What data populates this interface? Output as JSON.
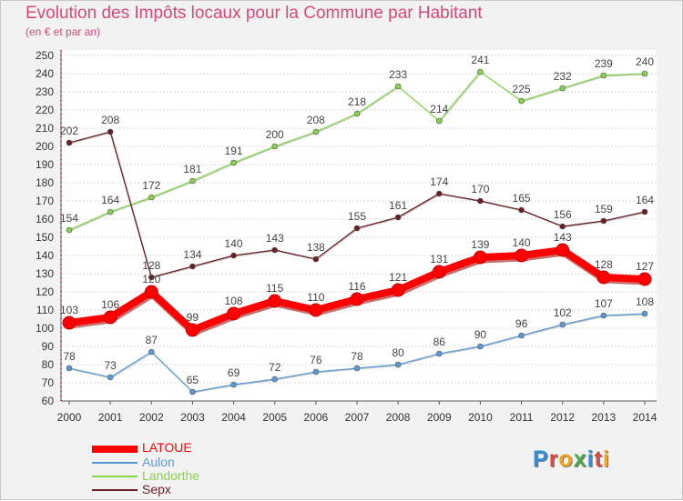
{
  "header": {
    "title": "Evolution des Impôts locaux pour la Commune par Habitant",
    "subtitle": "(en € et par an)"
  },
  "logo": {
    "letters": [
      "P",
      "r",
      "o",
      "x",
      "i",
      "t",
      "i"
    ],
    "colors": [
      "#2e8fd8",
      "#e6453d",
      "#f0a41e",
      "#4aa84a",
      "#2e8fd8",
      "#e6453d",
      "#f0a41e"
    ]
  },
  "chart_data": {
    "type": "line",
    "title": "Evolution des Impôts locaux pour la Commune par Habitant",
    "subtitle": "(en € et par an)",
    "x": [
      "2000",
      "2001",
      "2002",
      "2003",
      "2004",
      "2005",
      "2006",
      "2007",
      "2008",
      "2009",
      "2010",
      "2011",
      "2012",
      "2013",
      "2014"
    ],
    "y_ticks": [
      "60",
      "70",
      "80",
      "90",
      "100",
      "110",
      "120",
      "130",
      "140",
      "150",
      "160",
      "170",
      "180",
      "190",
      "200",
      "210",
      "220",
      "230",
      "240",
      "250"
    ],
    "ylim": [
      60,
      250
    ],
    "grid": "horizontal",
    "legend_position": "bottom-left",
    "series": [
      {
        "name": "LATOUE",
        "color": "#ff0000",
        "values": [
          103,
          106,
          120,
          99,
          108,
          115,
          110,
          116,
          121,
          131,
          139,
          140,
          143,
          128,
          127
        ]
      },
      {
        "name": "Aulon",
        "color": "#5b9bd5",
        "values": [
          78,
          73,
          87,
          65,
          69,
          72,
          76,
          78,
          80,
          86,
          90,
          96,
          102,
          107,
          108
        ]
      },
      {
        "name": "Landorthe",
        "color": "#86d44b",
        "values": [
          154,
          164,
          172,
          181,
          191,
          200,
          208,
          218,
          233,
          214,
          241,
          225,
          232,
          239,
          240
        ]
      },
      {
        "name": "Sepx",
        "color": "#6b1f25",
        "values": [
          202,
          208,
          128,
          134,
          140,
          143,
          138,
          155,
          161,
          174,
          170,
          165,
          156,
          159,
          164
        ]
      }
    ],
    "data_labels": {
      "LATOUE": [
        "103",
        "106",
        "120",
        "99",
        "108",
        "115",
        "110",
        "116",
        "121",
        "131",
        "139",
        "140",
        "143",
        "128",
        "127"
      ],
      "Aulon": [
        "78",
        "73",
        "87",
        "65",
        "69",
        "72",
        "76",
        "78",
        "80",
        "86",
        "90",
        "96",
        "102",
        "107",
        "108"
      ],
      "Landorthe": [
        "154",
        "164",
        "172",
        "181",
        "191",
        "200",
        "208",
        "218",
        "233",
        "214",
        "241",
        "225",
        "232",
        "239",
        "240"
      ],
      "Sepx": [
        "202",
        "208",
        "128",
        "134",
        "140",
        "143",
        "138",
        "155",
        "161",
        "174",
        "170",
        "165",
        "156",
        "159",
        "164"
      ]
    }
  }
}
